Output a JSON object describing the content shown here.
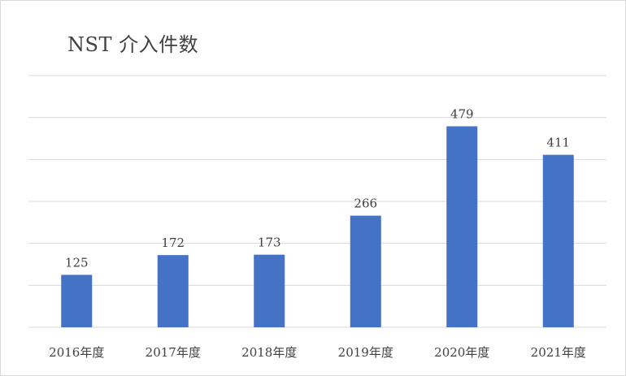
{
  "chart_data": {
    "type": "bar",
    "title": "NST 介入件数",
    "categories": [
      "2016年度",
      "2017年度",
      "2018年度",
      "2019年度",
      "2020年度",
      "2021年度"
    ],
    "values": [
      125,
      172,
      173,
      266,
      479,
      411
    ],
    "data_labels": [
      "125",
      "172",
      "173",
      "266",
      "479",
      "411"
    ],
    "ylim": [
      0,
      600
    ],
    "y_gridline_step": 100,
    "grid": true,
    "legend": "none",
    "bar_color": "#4472C4",
    "gridline_color": "#d9d9d9",
    "text_color": "#404040"
  }
}
